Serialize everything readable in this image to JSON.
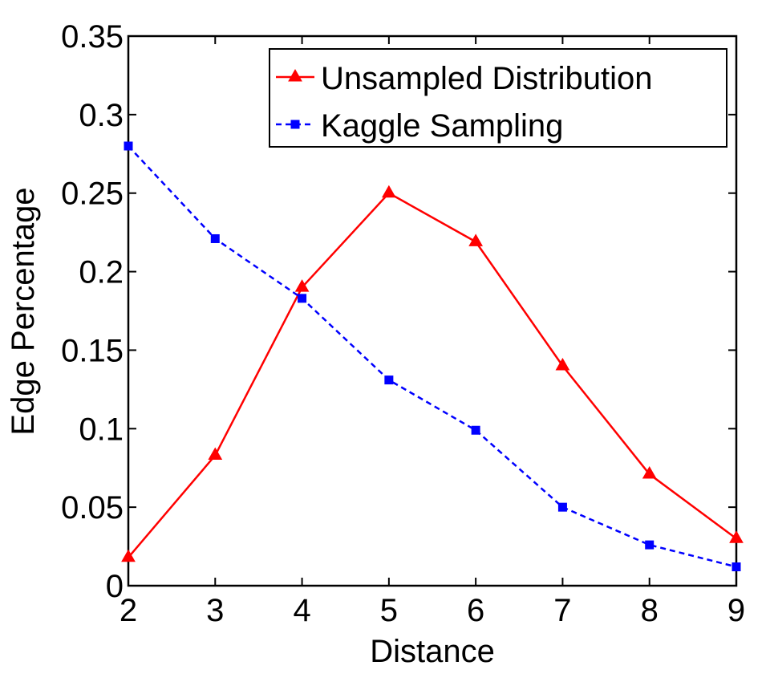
{
  "chart_data": {
    "type": "line",
    "title": "",
    "xlabel": "Distance",
    "ylabel": "Edge Percentage",
    "x": [
      2,
      3,
      4,
      5,
      6,
      7,
      8,
      9
    ],
    "xlim": [
      2,
      9
    ],
    "ylim": [
      0,
      0.35
    ],
    "xticks": [
      2,
      3,
      4,
      5,
      6,
      7,
      8,
      9
    ],
    "xtick_labels": [
      "2",
      "3",
      "4",
      "5",
      "6",
      "7",
      "8",
      "9"
    ],
    "yticks": [
      0,
      0.05,
      0.1,
      0.15,
      0.2,
      0.25,
      0.3,
      0.35
    ],
    "ytick_labels": [
      "0",
      "0.05",
      "0.1",
      "0.15",
      "0.2",
      "0.25",
      "0.3",
      "0.35"
    ],
    "grid": false,
    "legend_position": "top-right",
    "series": [
      {
        "name": "Unsampled Distribution",
        "values": [
          0.018,
          0.083,
          0.19,
          0.25,
          0.219,
          0.14,
          0.071,
          0.03
        ],
        "color": "#ff0000",
        "line_style": "solid",
        "marker": "triangle"
      },
      {
        "name": "Kaggle Sampling",
        "values": [
          0.28,
          0.221,
          0.183,
          0.131,
          0.099,
          0.05,
          0.026,
          0.012
        ],
        "color": "#0000ff",
        "line_style": "dashed",
        "marker": "square"
      }
    ]
  }
}
